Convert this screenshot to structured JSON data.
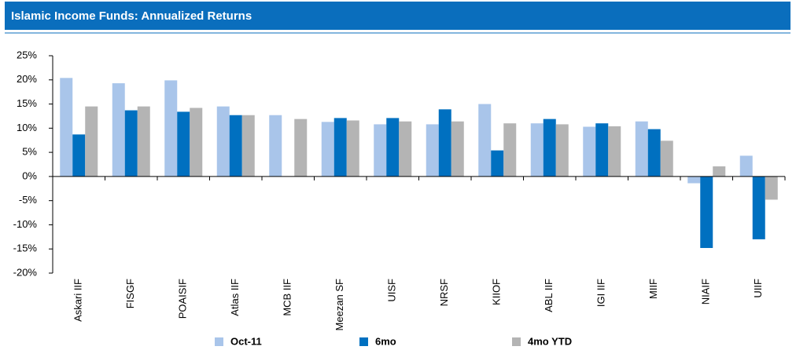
{
  "chart_data": {
    "type": "bar",
    "title": "Islamic Income Funds: Annualized Returns",
    "categories": [
      "Askari IIF",
      "FISGF",
      "POAISIF",
      "Atlas IIF",
      "MCB IIF",
      "Meezan SF",
      "UISF",
      "NRSF",
      "KIIOF",
      "ABL IIF",
      "IGI IIF",
      "MIIF",
      "NIAIF",
      "UIIF"
    ],
    "series": [
      {
        "name": "Oct-11",
        "color": "#a9c5ea",
        "values": [
          20.4,
          19.3,
          19.9,
          14.5,
          12.7,
          11.3,
          10.8,
          10.8,
          15.0,
          11.0,
          10.3,
          11.4,
          -1.4,
          4.3
        ]
      },
      {
        "name": "6mo",
        "color": "#0070c0",
        "values": [
          8.7,
          13.7,
          13.4,
          12.7,
          null,
          12.1,
          12.1,
          13.9,
          5.4,
          11.9,
          11.0,
          9.8,
          -14.8,
          -13.0
        ]
      },
      {
        "name": "4mo YTD",
        "color": "#b4b4b4",
        "values": [
          14.5,
          14.5,
          14.2,
          12.7,
          11.9,
          11.6,
          11.4,
          11.4,
          11.0,
          10.8,
          10.4,
          7.4,
          2.1,
          -4.8
        ]
      }
    ],
    "ylim": [
      -20,
      25
    ],
    "yticks": [
      {
        "value": -20,
        "label": "-20%"
      },
      {
        "value": -15,
        "label": "-15%"
      },
      {
        "value": -10,
        "label": "-10%"
      },
      {
        "value": -5,
        "label": "-5%"
      },
      {
        "value": 0,
        "label": "0%"
      },
      {
        "value": 5,
        "label": "5%"
      },
      {
        "value": 10,
        "label": "10%"
      },
      {
        "value": 15,
        "label": "15%"
      },
      {
        "value": 20,
        "label": "20%"
      },
      {
        "value": 25,
        "label": "25%"
      }
    ],
    "legend": "bottom"
  }
}
